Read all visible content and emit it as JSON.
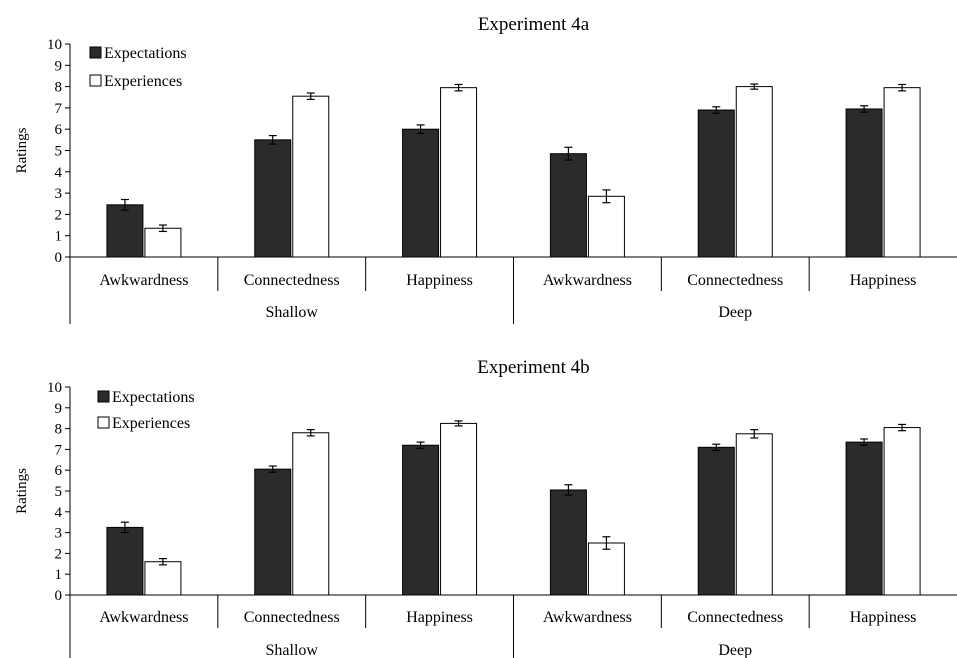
{
  "chart_data": [
    {
      "type": "bar",
      "title": "Experiment 4a",
      "ylabel": "Ratings",
      "xlabel": "",
      "ylim": [
        0,
        10
      ],
      "yticks": [
        0,
        1,
        2,
        3,
        4,
        5,
        6,
        7,
        8,
        9,
        10
      ],
      "grid": false,
      "legend_position": "top-left",
      "groups": [
        {
          "label": "Shallow",
          "categories": [
            "Awkwardness",
            "Connectedness",
            "Happiness"
          ]
        },
        {
          "label": "Deep",
          "categories": [
            "Awkwardness",
            "Connectedness",
            "Happiness"
          ]
        }
      ],
      "series": [
        {
          "name": "Expectations",
          "color": "#2b2b2b",
          "values": [
            2.45,
            5.5,
            6.0,
            4.85,
            6.9,
            6.95
          ],
          "errors": [
            0.25,
            0.2,
            0.2,
            0.3,
            0.15,
            0.15
          ]
        },
        {
          "name": "Experiences",
          "color": "#ffffff",
          "values": [
            1.35,
            7.55,
            7.95,
            2.85,
            8.0,
            7.95
          ],
          "errors": [
            0.15,
            0.15,
            0.15,
            0.3,
            0.12,
            0.15
          ]
        }
      ]
    },
    {
      "type": "bar",
      "title": "Experiment 4b",
      "ylabel": "Ratings",
      "xlabel": "",
      "ylim": [
        0,
        10
      ],
      "yticks": [
        0,
        1,
        2,
        3,
        4,
        5,
        6,
        7,
        8,
        9,
        10
      ],
      "grid": false,
      "legend_position": "top-left",
      "groups": [
        {
          "label": "Shallow",
          "categories": [
            "Awkwardness",
            "Connectedness",
            "Happiness"
          ]
        },
        {
          "label": "Deep",
          "categories": [
            "Awkwardness",
            "Connectedness",
            "Happiness"
          ]
        }
      ],
      "series": [
        {
          "name": "Expectations",
          "color": "#2b2b2b",
          "values": [
            3.25,
            6.05,
            7.2,
            5.05,
            7.1,
            7.35
          ],
          "errors": [
            0.25,
            0.15,
            0.15,
            0.25,
            0.15,
            0.15
          ]
        },
        {
          "name": "Experiences",
          "color": "#ffffff",
          "values": [
            1.6,
            7.8,
            8.25,
            2.5,
            7.75,
            8.05
          ],
          "errors": [
            0.15,
            0.15,
            0.12,
            0.3,
            0.2,
            0.15
          ]
        }
      ]
    }
  ]
}
